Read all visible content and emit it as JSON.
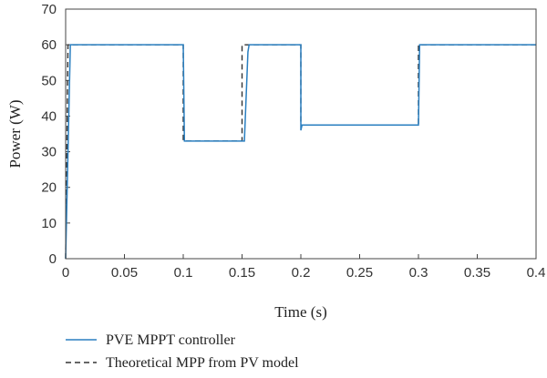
{
  "chart_data": {
    "type": "line",
    "xlabel": "Time (s)",
    "ylabel": "Power (W)",
    "xlim": [
      0,
      0.4
    ],
    "ylim": [
      0,
      70
    ],
    "x_ticks": [
      "0",
      "0.05",
      "0.1",
      "0.15",
      "0.2",
      "0.25",
      "0.3",
      "0.35",
      "0.4"
    ],
    "y_ticks": [
      "0",
      "10",
      "20",
      "30",
      "40",
      "50",
      "60",
      "70"
    ],
    "grid": false,
    "legend_position": "bottom-left, below plot",
    "series": [
      {
        "name": "PVE MPPT controller",
        "style": "solid",
        "color": "#2a7fc0",
        "x": [
          0,
          0.004,
          0.1,
          0.101,
          0.15,
          0.152,
          0.155,
          0.156,
          0.2,
          0.2,
          0.201,
          0.3,
          0.301,
          0.4
        ],
        "y": [
          0,
          60,
          60,
          33,
          33,
          33,
          58,
          60,
          60,
          36,
          37.5,
          37.5,
          60,
          60
        ]
      },
      {
        "name": "Theoretical MPP from PV model",
        "style": "dashed",
        "color": "#333333",
        "x": [
          0,
          0.002,
          0.1,
          0.1,
          0.15,
          0.15,
          0.2,
          0.2,
          0.3,
          0.3,
          0.4
        ],
        "y": [
          0,
          60,
          60,
          33,
          33,
          60,
          60,
          37.5,
          37.5,
          60,
          60
        ]
      }
    ]
  }
}
